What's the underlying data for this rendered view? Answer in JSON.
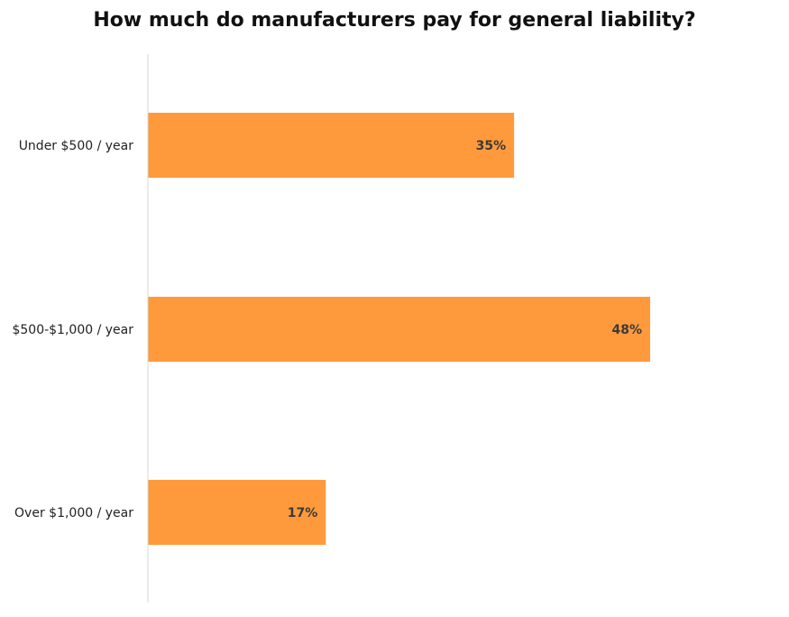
{
  "chart_data": {
    "type": "bar",
    "orientation": "horizontal",
    "title": "How much do manufacturers pay for general liability?",
    "categories": [
      "Under $500 / year",
      "$500-$1,000 / year",
      "Over $1,000 / year"
    ],
    "values": [
      35,
      48,
      17
    ],
    "value_labels": [
      "35%",
      "48%",
      "17%"
    ],
    "unit": "%",
    "xlim": [
      0,
      60
    ],
    "grid": false,
    "legend": "none",
    "bar_color": "#FF9A3C",
    "axis_color": "#D9D9D9"
  }
}
